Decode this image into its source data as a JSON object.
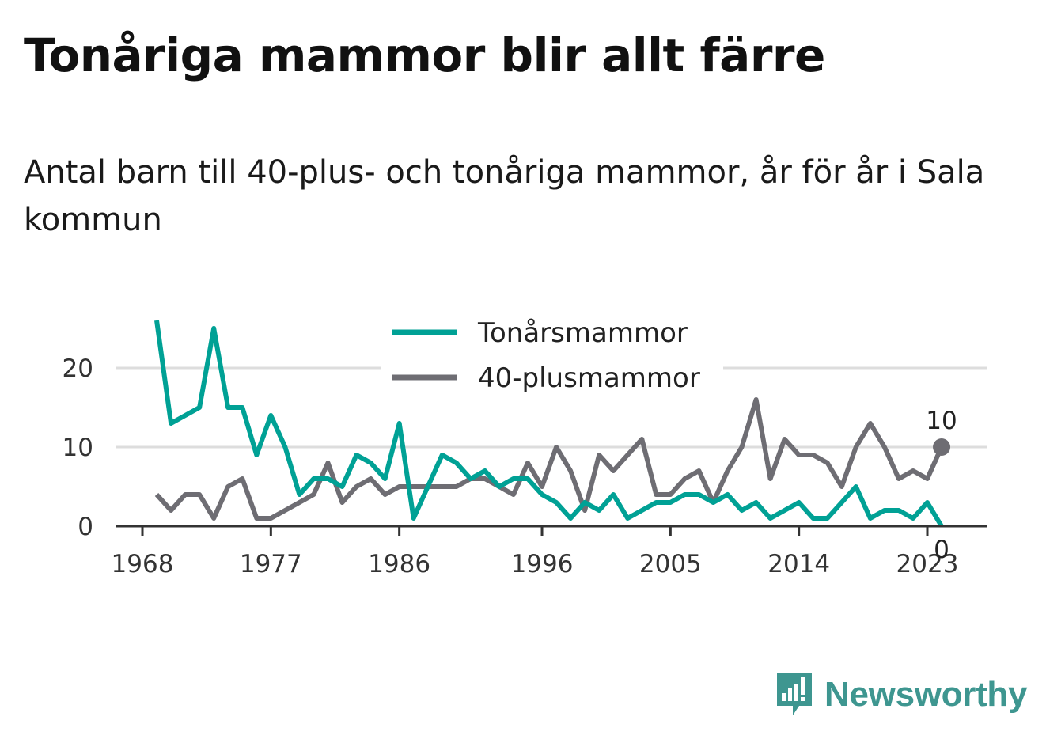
{
  "title": "Tonåriga mammor blir allt färre",
  "subtitle": "Antal barn till 40-plus- och tonåriga mammor, år för år i Sala kommun",
  "brand": {
    "name": "Newsworthy",
    "icon": "newsworthy-logo-icon",
    "color": "#3e9690"
  },
  "colors": {
    "teen": "#00a195",
    "forty_plus": "#6e6d73",
    "grid": "#dddddd",
    "axis": "#333333"
  },
  "chart_data": {
    "type": "line",
    "title": "",
    "xlabel": "",
    "ylabel": "",
    "xlim": [
      1967,
      2027
    ],
    "ylim": [
      0,
      27
    ],
    "x_ticks": [
      1968,
      1977,
      1986,
      1996,
      2005,
      2014,
      2023
    ],
    "y_ticks": [
      0,
      10,
      20
    ],
    "grid": true,
    "legend_position": "top-center",
    "x": [
      1969,
      1970,
      1971,
      1972,
      1973,
      1974,
      1975,
      1976,
      1977,
      1978,
      1979,
      1980,
      1981,
      1982,
      1983,
      1984,
      1985,
      1986,
      1987,
      1988,
      1989,
      1990,
      1991,
      1992,
      1993,
      1994,
      1995,
      1996,
      1997,
      1998,
      1999,
      2000,
      2001,
      2002,
      2003,
      2004,
      2005,
      2006,
      2007,
      2008,
      2009,
      2010,
      2011,
      2012,
      2013,
      2014,
      2015,
      2016,
      2017,
      2018,
      2019,
      2020,
      2021,
      2022,
      2023,
      2024
    ],
    "series": [
      {
        "name": "Tonårsmammor",
        "color": "#00a195",
        "values": [
          26,
          13,
          14,
          15,
          25,
          15,
          15,
          9,
          14,
          10,
          4,
          6,
          6,
          5,
          9,
          8,
          6,
          13,
          1,
          5,
          9,
          8,
          6,
          7,
          5,
          6,
          6,
          4,
          3,
          1,
          3,
          2,
          4,
          1,
          2,
          3,
          3,
          4,
          4,
          3,
          4,
          2,
          3,
          1,
          2,
          3,
          1,
          1,
          3,
          5,
          1,
          2,
          2,
          1,
          3,
          0
        ]
      },
      {
        "name": "40-plusmammor",
        "color": "#6e6d73",
        "values": [
          4,
          2,
          4,
          4,
          1,
          5,
          6,
          1,
          1,
          2,
          3,
          4,
          8,
          3,
          5,
          6,
          4,
          5,
          5,
          5,
          5,
          5,
          6,
          6,
          5,
          4,
          8,
          5,
          10,
          7,
          2,
          9,
          7,
          9,
          11,
          4,
          4,
          6,
          7,
          3,
          7,
          10,
          16,
          6,
          11,
          9,
          9,
          8,
          5,
          10,
          13,
          10,
          6,
          7,
          6,
          10
        ]
      }
    ],
    "annotations": [
      {
        "series": "40-plusmammor",
        "x": 2024,
        "label": "10"
      },
      {
        "series": "Tonårsmammor",
        "x": 2024,
        "label": "0"
      }
    ]
  }
}
